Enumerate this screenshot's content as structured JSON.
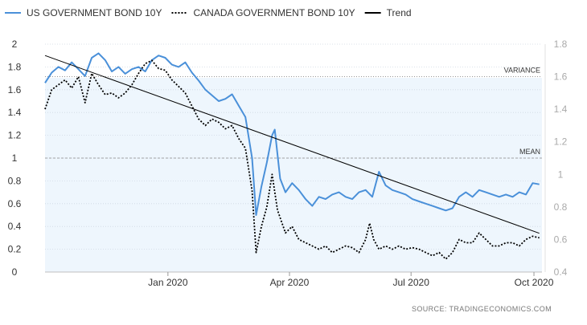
{
  "chart_data": {
    "type": "line",
    "legend": [
      {
        "label": "US GOVERNMENT BOND 10Y",
        "color": "#4a90d9",
        "style": "solid"
      },
      {
        "label": "CANADA GOVERNMENT BOND 10Y",
        "color": "#000000",
        "style": "dotted"
      },
      {
        "label": "Trend",
        "color": "#000000",
        "style": "solid"
      }
    ],
    "legend_position": "top-left",
    "x_ticks": [
      "Jan 2020",
      "Apr 2020",
      "Jul 2020",
      "Oct 2020"
    ],
    "x_tick_days": [
      92,
      183,
      274,
      366
    ],
    "x_range_days": [
      0,
      372
    ],
    "y_left": {
      "ticks": [
        "0",
        "0.2",
        "0.4",
        "0.6",
        "0.8",
        "1",
        "1.2",
        "1.4",
        "1.6",
        "1.8",
        "2"
      ],
      "range": [
        0,
        2
      ]
    },
    "y_right": {
      "ticks": [
        "0.4",
        "0.6",
        "0.8",
        "1",
        "1.2",
        "1.4",
        "1.6",
        "1.8"
      ],
      "range": [
        0.4,
        1.8
      ]
    },
    "grid": "horizontal dotted",
    "series": [
      {
        "name": "US GOVERNMENT BOND 10Y",
        "axis": "left",
        "points": [
          [
            0,
            1.66
          ],
          [
            5,
            1.75
          ],
          [
            10,
            1.8
          ],
          [
            15,
            1.77
          ],
          [
            20,
            1.84
          ],
          [
            25,
            1.78
          ],
          [
            30,
            1.72
          ],
          [
            35,
            1.88
          ],
          [
            40,
            1.92
          ],
          [
            45,
            1.86
          ],
          [
            50,
            1.76
          ],
          [
            55,
            1.8
          ],
          [
            60,
            1.74
          ],
          [
            65,
            1.78
          ],
          [
            70,
            1.8
          ],
          [
            75,
            1.76
          ],
          [
            80,
            1.86
          ],
          [
            85,
            1.9
          ],
          [
            90,
            1.88
          ],
          [
            95,
            1.82
          ],
          [
            100,
            1.8
          ],
          [
            105,
            1.84
          ],
          [
            110,
            1.75
          ],
          [
            115,
            1.68
          ],
          [
            120,
            1.6
          ],
          [
            125,
            1.55
          ],
          [
            130,
            1.5
          ],
          [
            135,
            1.52
          ],
          [
            140,
            1.56
          ],
          [
            145,
            1.46
          ],
          [
            150,
            1.36
          ],
          [
            155,
            1.0
          ],
          [
            158,
            0.5
          ],
          [
            162,
            0.75
          ],
          [
            166,
            0.96
          ],
          [
            170,
            1.2
          ],
          [
            172,
            1.25
          ],
          [
            176,
            0.82
          ],
          [
            180,
            0.7
          ],
          [
            185,
            0.78
          ],
          [
            190,
            0.72
          ],
          [
            195,
            0.64
          ],
          [
            200,
            0.58
          ],
          [
            205,
            0.66
          ],
          [
            210,
            0.64
          ],
          [
            215,
            0.68
          ],
          [
            220,
            0.7
          ],
          [
            225,
            0.66
          ],
          [
            230,
            0.64
          ],
          [
            235,
            0.7
          ],
          [
            240,
            0.72
          ],
          [
            245,
            0.66
          ],
          [
            250,
            0.88
          ],
          [
            255,
            0.76
          ],
          [
            260,
            0.72
          ],
          [
            265,
            0.7
          ],
          [
            270,
            0.68
          ],
          [
            275,
            0.64
          ],
          [
            280,
            0.62
          ],
          [
            285,
            0.6
          ],
          [
            290,
            0.58
          ],
          [
            295,
            0.56
          ],
          [
            300,
            0.54
          ],
          [
            305,
            0.56
          ],
          [
            310,
            0.66
          ],
          [
            315,
            0.7
          ],
          [
            320,
            0.66
          ],
          [
            325,
            0.72
          ],
          [
            330,
            0.7
          ],
          [
            335,
            0.68
          ],
          [
            340,
            0.66
          ],
          [
            345,
            0.68
          ],
          [
            350,
            0.66
          ],
          [
            355,
            0.7
          ],
          [
            360,
            0.68
          ],
          [
            365,
            0.78
          ],
          [
            370,
            0.77
          ]
        ]
      },
      {
        "name": "CANADA GOVERNMENT BOND 10Y",
        "axis": "right",
        "points": [
          [
            0,
            1.4
          ],
          [
            5,
            1.52
          ],
          [
            10,
            1.55
          ],
          [
            15,
            1.58
          ],
          [
            20,
            1.53
          ],
          [
            25,
            1.6
          ],
          [
            30,
            1.44
          ],
          [
            35,
            1.62
          ],
          [
            40,
            1.55
          ],
          [
            45,
            1.49
          ],
          [
            50,
            1.5
          ],
          [
            55,
            1.47
          ],
          [
            60,
            1.5
          ],
          [
            65,
            1.55
          ],
          [
            70,
            1.62
          ],
          [
            75,
            1.68
          ],
          [
            80,
            1.7
          ],
          [
            85,
            1.65
          ],
          [
            90,
            1.64
          ],
          [
            95,
            1.58
          ],
          [
            100,
            1.54
          ],
          [
            105,
            1.5
          ],
          [
            110,
            1.42
          ],
          [
            115,
            1.34
          ],
          [
            120,
            1.3
          ],
          [
            125,
            1.34
          ],
          [
            130,
            1.32
          ],
          [
            135,
            1.28
          ],
          [
            140,
            1.3
          ],
          [
            145,
            1.22
          ],
          [
            150,
            1.16
          ],
          [
            155,
            0.9
          ],
          [
            158,
            0.52
          ],
          [
            162,
            0.68
          ],
          [
            166,
            0.8
          ],
          [
            170,
            1.0
          ],
          [
            174,
            0.78
          ],
          [
            180,
            0.64
          ],
          [
            185,
            0.68
          ],
          [
            190,
            0.6
          ],
          [
            195,
            0.58
          ],
          [
            200,
            0.56
          ],
          [
            205,
            0.54
          ],
          [
            210,
            0.56
          ],
          [
            215,
            0.52
          ],
          [
            220,
            0.54
          ],
          [
            225,
            0.56
          ],
          [
            230,
            0.55
          ],
          [
            235,
            0.52
          ],
          [
            240,
            0.6
          ],
          [
            243,
            0.7
          ],
          [
            246,
            0.6
          ],
          [
            250,
            0.54
          ],
          [
            255,
            0.56
          ],
          [
            260,
            0.54
          ],
          [
            265,
            0.56
          ],
          [
            270,
            0.54
          ],
          [
            275,
            0.55
          ],
          [
            280,
            0.54
          ],
          [
            285,
            0.52
          ],
          [
            290,
            0.5
          ],
          [
            295,
            0.52
          ],
          [
            300,
            0.48
          ],
          [
            305,
            0.52
          ],
          [
            310,
            0.6
          ],
          [
            315,
            0.58
          ],
          [
            320,
            0.58
          ],
          [
            325,
            0.64
          ],
          [
            330,
            0.6
          ],
          [
            335,
            0.56
          ],
          [
            340,
            0.56
          ],
          [
            345,
            0.58
          ],
          [
            350,
            0.58
          ],
          [
            355,
            0.56
          ],
          [
            360,
            0.6
          ],
          [
            365,
            0.62
          ],
          [
            370,
            0.61
          ]
        ]
      },
      {
        "name": "Trend",
        "axis": "left",
        "points": [
          [
            0,
            1.9
          ],
          [
            370,
            0.34
          ]
        ]
      }
    ],
    "reference_lines": [
      {
        "label": "VARIANCE",
        "value": 1.6,
        "axis": "right",
        "style": "dotted"
      },
      {
        "label": "MEAN",
        "value": 1.0,
        "axis": "left",
        "style": "dashed"
      }
    ],
    "source": "SOURCE:  TRADINGECONOMICS.COM"
  }
}
